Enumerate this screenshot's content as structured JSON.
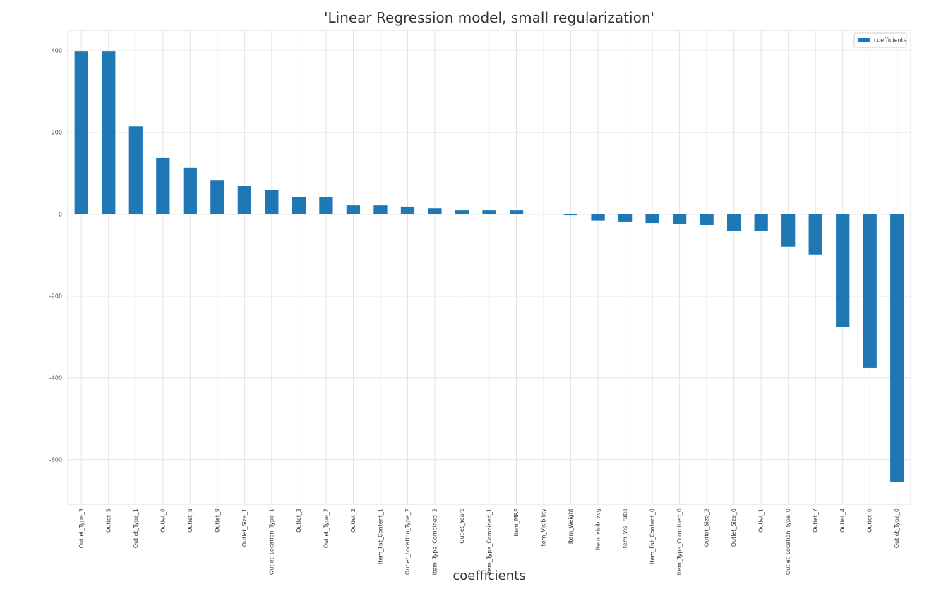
{
  "chart_data": {
    "type": "bar",
    "title": "'Linear Regression model, small regularization'",
    "xlabel": "coefficients",
    "categories": [
      "Outlet_Type_3",
      "Outlet_5",
      "Outlet_Type_1",
      "Outlet_6",
      "Outlet_8",
      "Outlet_9",
      "Outlet_Size_1",
      "Outlet_Location_Type_1",
      "Outlet_3",
      "Outlet_Type_2",
      "Outlet_2",
      "Item_Fat_Content_1",
      "Outlet_Location_Type_2",
      "Item_Type_Combined_2",
      "Outlet_Years",
      "Item_Type_Combined_1",
      "Item_MRP",
      "Item_Visibility",
      "Item_Weight",
      "Item_visib_avg",
      "Item_Visi_ratio",
      "Item_Fat_Content_0",
      "Item_Type_Combined_0",
      "Outlet_Size_2",
      "Outlet_Size_0",
      "Outlet_1",
      "Outlet_Location_Type_0",
      "Outlet_7",
      "Outlet_4",
      "Outlet_0",
      "Outlet_Type_0"
    ],
    "series": [
      {
        "name": "coefficients",
        "color": "#1f77b4",
        "values": [
          398,
          398,
          215,
          138,
          114,
          84,
          69,
          60,
          43,
          43,
          22,
          22,
          19,
          15,
          10,
          10,
          10,
          0,
          -2,
          -15,
          -19,
          -21,
          -24,
          -26,
          -40,
          -40,
          -79,
          -98,
          -276,
          -376,
          -655
        ]
      }
    ],
    "ylim": [
      -709,
      450
    ],
    "yticks": [
      -600,
      -400,
      -200,
      0,
      200,
      400
    ],
    "grid": true,
    "legend": "upper right"
  }
}
